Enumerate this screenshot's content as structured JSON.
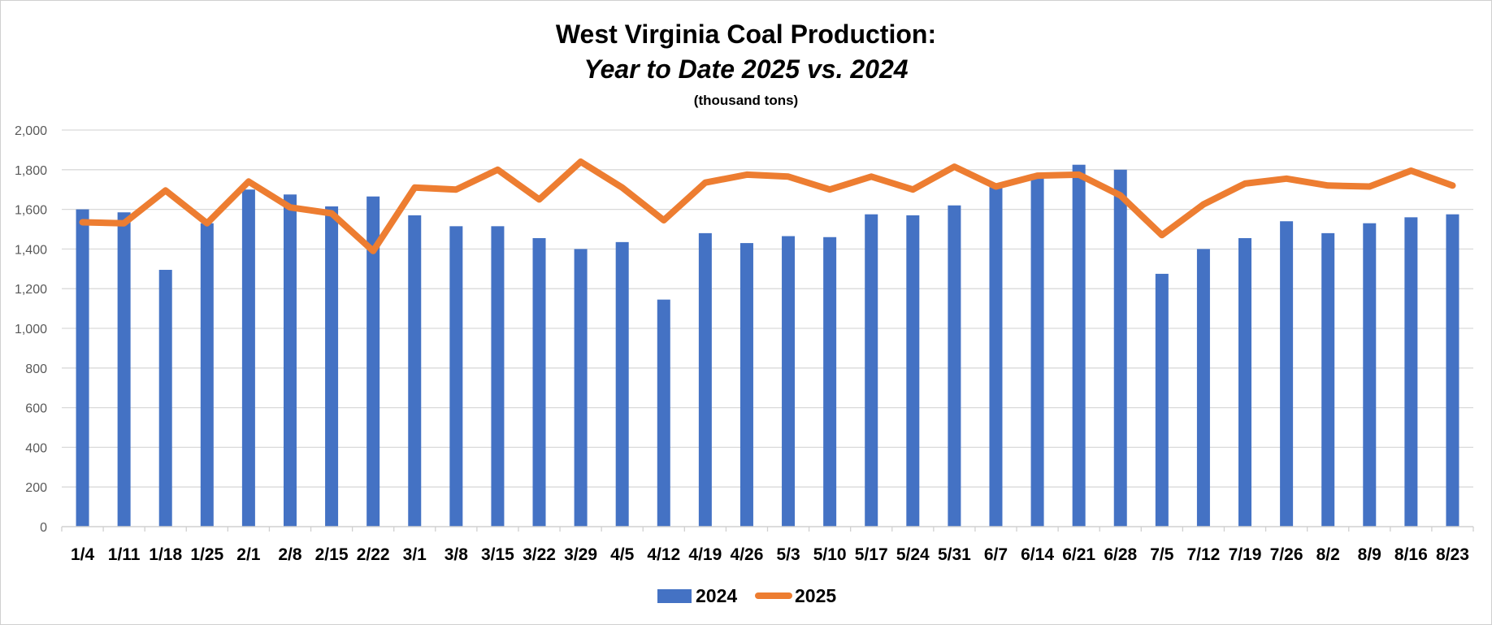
{
  "chart_data": {
    "type": "bar",
    "title": "West Virginia Coal Production:",
    "subtitle": "Year to Date 2025 vs. 2024",
    "unit_label": "(thousand tons)",
    "xlabel": "",
    "ylabel": "",
    "ylim": [
      0,
      2000
    ],
    "yticks": [
      0,
      200,
      400,
      600,
      800,
      1000,
      1200,
      1400,
      1600,
      1800,
      2000
    ],
    "ytick_labels": [
      "0",
      "200",
      "400",
      "600",
      "800",
      "1,000",
      "1,200",
      "1,400",
      "1,600",
      "1,800",
      "2,000"
    ],
    "grid": true,
    "legend_position": "bottom",
    "categories": [
      "1/4",
      "1/11",
      "1/18",
      "1/25",
      "2/1",
      "2/8",
      "2/15",
      "2/22",
      "3/1",
      "3/8",
      "3/15",
      "3/22",
      "3/29",
      "4/5",
      "4/12",
      "4/19",
      "4/26",
      "5/3",
      "5/10",
      "5/17",
      "5/24",
      "5/31",
      "6/7",
      "6/14",
      "6/21",
      "6/28",
      "7/5",
      "7/12",
      "7/19",
      "7/26",
      "8/2",
      "8/9",
      "8/16",
      "8/23"
    ],
    "series": [
      {
        "name": "2024",
        "type": "bar",
        "color": "#4472C4",
        "values": [
          1600,
          1585,
          1295,
          1530,
          1700,
          1675,
          1615,
          1665,
          1570,
          1515,
          1515,
          1455,
          1400,
          1435,
          1145,
          1480,
          1430,
          1465,
          1460,
          1575,
          1570,
          1620,
          1715,
          1760,
          1825,
          1800,
          1275,
          1400,
          1455,
          1540,
          1480,
          1530,
          1560,
          1575
        ]
      },
      {
        "name": "2025",
        "type": "line",
        "color": "#ED7D31",
        "values": [
          1535,
          1530,
          1695,
          1530,
          1740,
          1610,
          1580,
          1390,
          1710,
          1700,
          1800,
          1650,
          1840,
          1710,
          1545,
          1735,
          1775,
          1765,
          1700,
          1765,
          1700,
          1815,
          1715,
          1770,
          1775,
          1670,
          1470,
          1625,
          1730,
          1755,
          1720,
          1715,
          1795,
          1720
        ]
      }
    ]
  }
}
